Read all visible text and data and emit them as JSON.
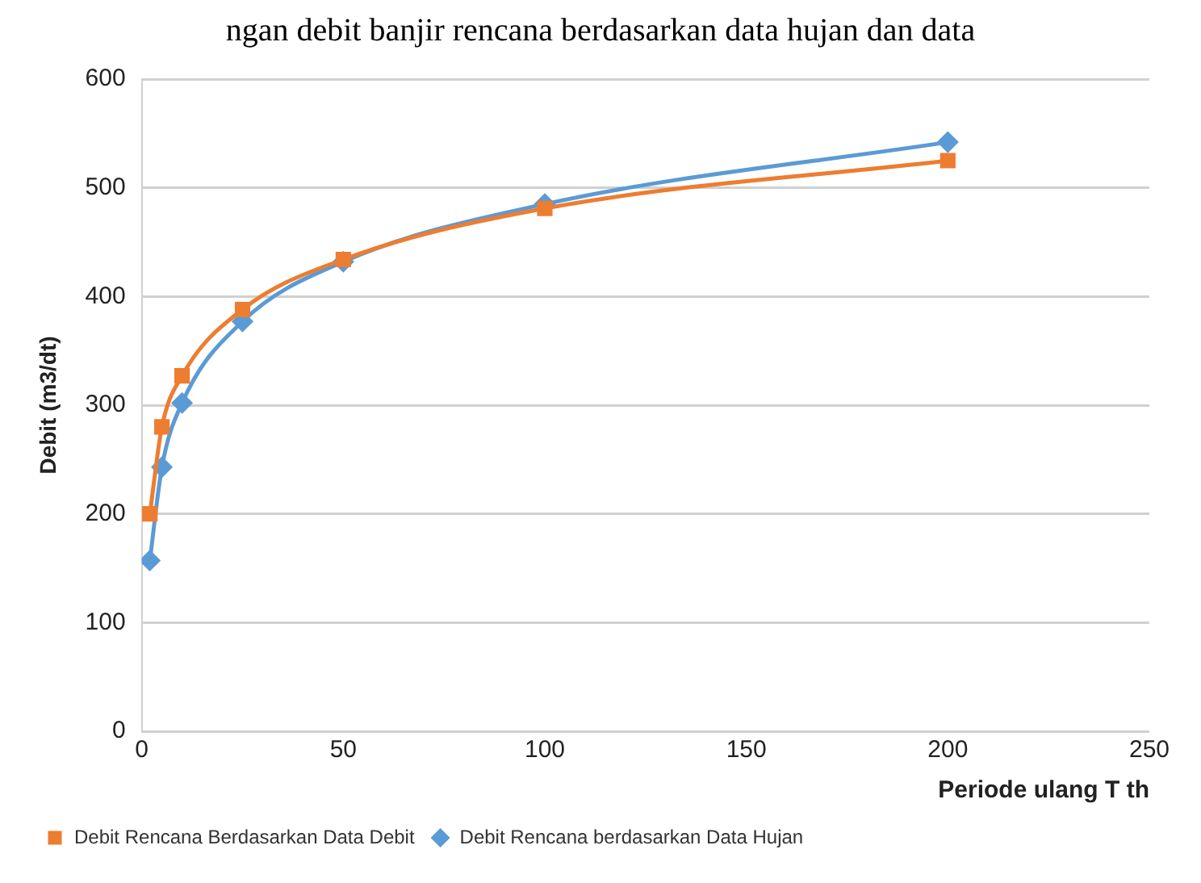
{
  "chart_data": {
    "type": "line",
    "annotations": [
      "ngan debit banjir rencana berdasarkan data hujan dan data"
    ],
    "xlabel": "Periode ulang T th",
    "ylabel": "Debit (m3/dt)",
    "x": [
      2,
      5,
      10,
      25,
      50,
      100,
      200
    ],
    "series": [
      {
        "name": "Debit Rencana berdasarkan Data Hujan",
        "color": "#5b9bd5",
        "marker": "diamond",
        "values": [
          157,
          243,
          302,
          377,
          432,
          485,
          542
        ]
      },
      {
        "name": "Debit Rencana Berdasarkan Data Debit",
        "color": "#ed7d31",
        "marker": "square",
        "values": [
          200,
          280,
          327,
          388,
          434,
          481,
          525
        ]
      }
    ],
    "xlim": [
      0,
      250
    ],
    "xticks": [
      0,
      50,
      100,
      150,
      200,
      250
    ],
    "ylim": [
      0,
      600
    ],
    "yticks": [
      0,
      100,
      200,
      300,
      400,
      500,
      600
    ],
    "grid": "y",
    "legend": "bottom",
    "line_style": "solid"
  }
}
